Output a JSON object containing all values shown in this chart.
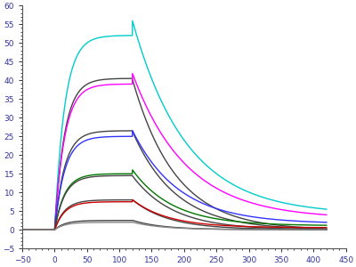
{
  "title": "",
  "xlim": [
    -50,
    450
  ],
  "ylim": [
    -5,
    60
  ],
  "xticks": [
    -50,
    0,
    50,
    100,
    150,
    200,
    250,
    300,
    350,
    400,
    450
  ],
  "yticks": [
    -5,
    0,
    5,
    10,
    15,
    20,
    25,
    30,
    35,
    40,
    45,
    50,
    55,
    60
  ],
  "background_color": "#ffffff",
  "curves": [
    {
      "peak": 52.0,
      "color": "#00cccc",
      "lw": 1.0,
      "ka": 0.065,
      "kd": 0.012,
      "baseline_end": 5.5
    },
    {
      "peak": 40.5,
      "color": "#444444",
      "lw": 1.0,
      "ka": 0.065,
      "kd": 0.015,
      "baseline_end": 0.3
    },
    {
      "peak": 39.0,
      "color": "#ff00ff",
      "lw": 1.0,
      "ka": 0.065,
      "kd": 0.012,
      "baseline_end": 4.0
    },
    {
      "peak": 26.5,
      "color": "#444444",
      "lw": 1.0,
      "ka": 0.065,
      "kd": 0.015,
      "baseline_end": 0.2
    },
    {
      "peak": 25.0,
      "color": "#3333ff",
      "lw": 1.0,
      "ka": 0.065,
      "kd": 0.014,
      "baseline_end": 2.0
    },
    {
      "peak": 15.0,
      "color": "#007700",
      "lw": 1.0,
      "ka": 0.065,
      "kd": 0.016,
      "baseline_end": 1.2
    },
    {
      "peak": 14.5,
      "color": "#444444",
      "lw": 1.0,
      "ka": 0.065,
      "kd": 0.016,
      "baseline_end": 0.1
    },
    {
      "peak": 8.0,
      "color": "#444444",
      "lw": 1.0,
      "ka": 0.065,
      "kd": 0.018,
      "baseline_end": 0.1
    },
    {
      "peak": 7.5,
      "color": "#cc0000",
      "lw": 1.0,
      "ka": 0.065,
      "kd": 0.018,
      "baseline_end": 0.6
    },
    {
      "peak": 2.5,
      "color": "#444444",
      "lw": 1.0,
      "ka": 0.065,
      "kd": 0.022,
      "baseline_end": 0.05
    },
    {
      "peak": 2.0,
      "color": "#888888",
      "lw": 1.0,
      "ka": 0.065,
      "kd": 0.022,
      "baseline_end": 0.05
    }
  ],
  "t_baseline_start": -50,
  "t_start": 0,
  "t_assoc_end": 120,
  "t_dissoc_end": 420
}
